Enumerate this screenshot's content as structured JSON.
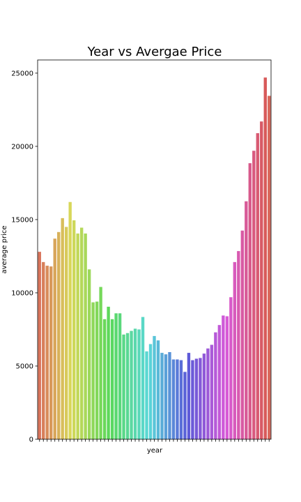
{
  "chart_data": {
    "type": "bar",
    "title": "Year vs Avergae Price",
    "xlabel": "year",
    "ylabel": "average price",
    "ylim": [
      0,
      25900
    ],
    "yticks": [
      0,
      5000,
      10000,
      15000,
      20000,
      25000
    ],
    "ytick_labels": [
      "0",
      "5000",
      "10000",
      "15000",
      "20000",
      "25000"
    ],
    "grid": false,
    "legend": "none",
    "x_tick_labels_visible": false,
    "palette": "husl",
    "values": [
      12800,
      12100,
      11850,
      11800,
      13700,
      14150,
      15100,
      14500,
      16200,
      14950,
      14050,
      14450,
      14050,
      11600,
      9350,
      9400,
      10400,
      8200,
      9050,
      8200,
      8600,
      8600,
      7150,
      7250,
      7400,
      7550,
      7500,
      8350,
      6000,
      6500,
      7050,
      6750,
      5900,
      5800,
      5950,
      5450,
      5450,
      5400,
      4600,
      5900,
      5400,
      5500,
      5550,
      5850,
      6200,
      6450,
      7300,
      7800,
      8450,
      8400,
      9700,
      12100,
      12850,
      14250,
      16250,
      18850,
      19700,
      20900,
      21700,
      24700,
      23450
    ]
  }
}
